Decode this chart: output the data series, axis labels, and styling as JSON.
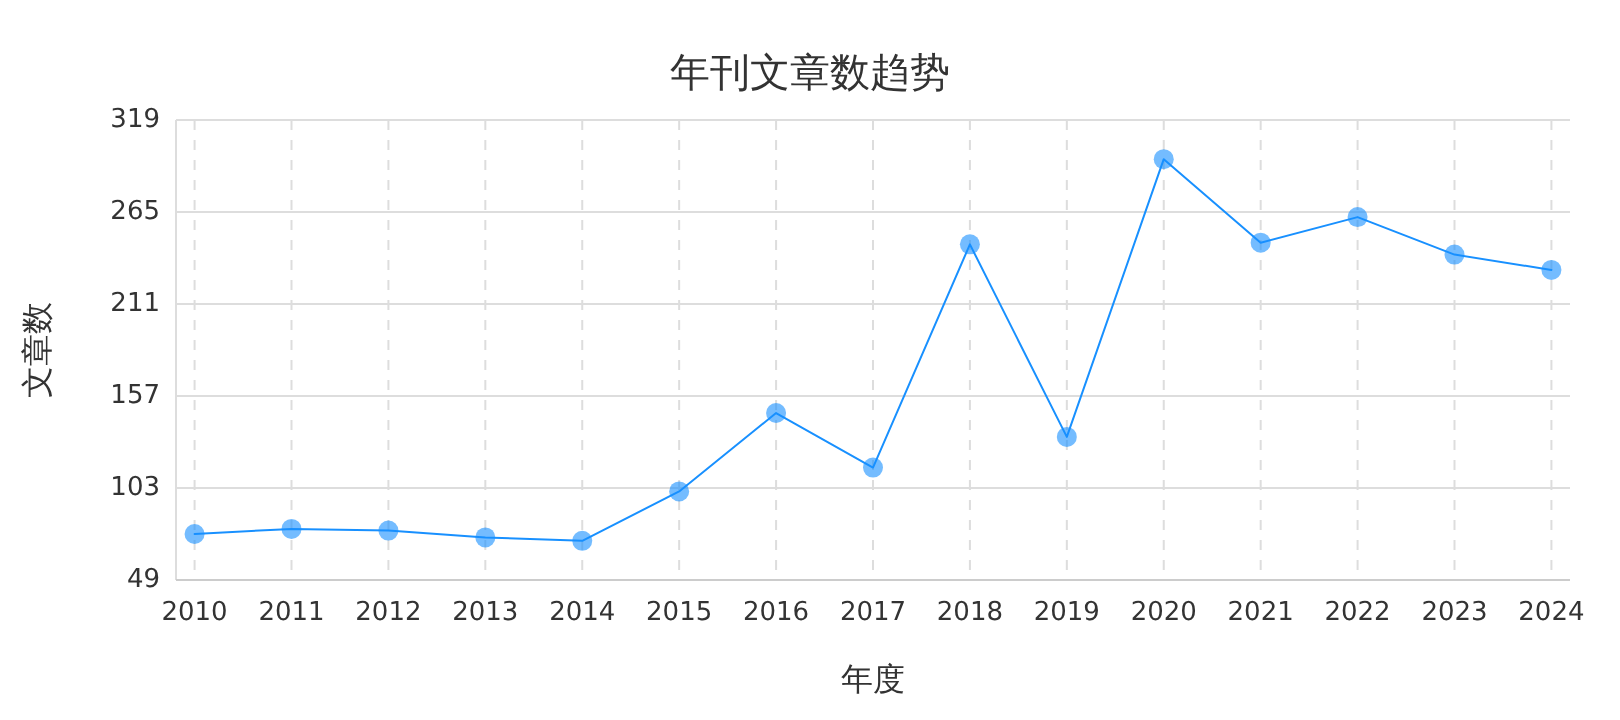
{
  "chart_data": {
    "type": "line",
    "title": "年刊文章数趋势",
    "xlabel": "年度",
    "ylabel": "文章数",
    "categories": [
      "2010",
      "2011",
      "2012",
      "2013",
      "2014",
      "2015",
      "2016",
      "2017",
      "2018",
      "2019",
      "2020",
      "2021",
      "2022",
      "2023",
      "2024"
    ],
    "series": [
      {
        "color": "#1890ff",
        "values": [
          76,
          79,
          78,
          74,
          72,
          101,
          147,
          115,
          246,
          133,
          296,
          247,
          262,
          240,
          231
        ]
      }
    ],
    "ylim": [
      49,
      319
    ],
    "yticks": [
      49,
      103,
      157,
      211,
      265,
      319
    ],
    "grid": true,
    "marker": "circle",
    "line_style": "solid"
  }
}
